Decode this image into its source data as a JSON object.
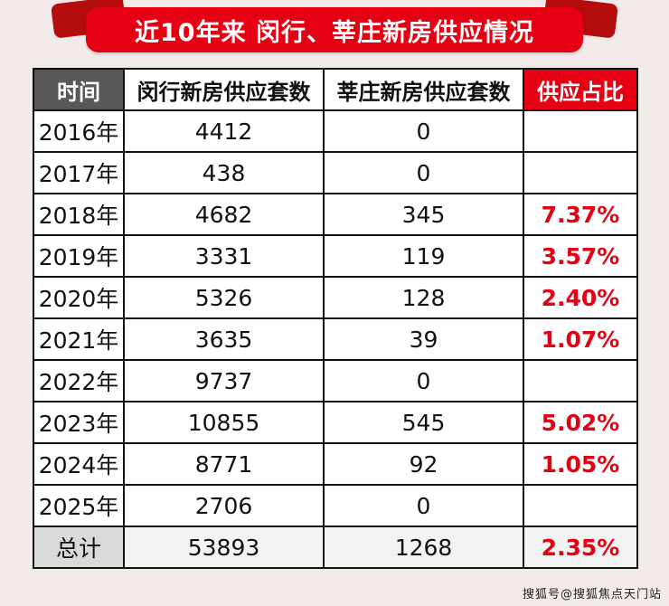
{
  "banner": {
    "title": "近10年来 闵行、莘庄新房供应情况"
  },
  "table": {
    "headers": [
      "时间",
      "闵行新房供应套数",
      "莘庄新房供应套数",
      "供应占比"
    ],
    "rows": [
      [
        "2016年",
        "4412",
        "0",
        ""
      ],
      [
        "2017年",
        "438",
        "0",
        ""
      ],
      [
        "2018年",
        "4682",
        "345",
        "7.37%"
      ],
      [
        "2019年",
        "3331",
        "119",
        "3.57%"
      ],
      [
        "2020年",
        "5326",
        "128",
        "2.40%"
      ],
      [
        "2021年",
        "3635",
        "39",
        "1.07%"
      ],
      [
        "2022年",
        "9737",
        "0",
        ""
      ],
      [
        "2023年",
        "10855",
        "545",
        "5.02%"
      ],
      [
        "2024年",
        "8771",
        "92",
        "1.05%"
      ],
      [
        "2025年",
        "2706",
        "0",
        ""
      ],
      [
        "总计",
        "53893",
        "1268",
        "2.35%"
      ]
    ]
  },
  "watermark": "搜狐号@搜狐焦点天门站",
  "colors": {
    "accent_red": "#e60013",
    "ribbon_dark_red": "#b50d0d",
    "header_gray": "#595757",
    "total_cell_gray": "#d9d9d9",
    "background_pink": "#f2e9e9"
  },
  "chart_data": {
    "type": "table",
    "title": "近10年来 闵行、莘庄新房供应情况",
    "columns": [
      "时间",
      "闵行新房供应套数",
      "莘庄新房供应套数",
      "供应占比"
    ],
    "categories": [
      "2016年",
      "2017年",
      "2018年",
      "2019年",
      "2020年",
      "2021年",
      "2022年",
      "2023年",
      "2024年",
      "2025年"
    ],
    "series": [
      {
        "name": "闵行新房供应套数",
        "values": [
          4412,
          438,
          4682,
          3331,
          5326,
          3635,
          9737,
          10855,
          8771,
          2706
        ]
      },
      {
        "name": "莘庄新房供应套数",
        "values": [
          0,
          0,
          345,
          119,
          128,
          39,
          0,
          545,
          92,
          0
        ]
      },
      {
        "name": "供应占比",
        "values": [
          null,
          null,
          "7.37%",
          "3.57%",
          "2.40%",
          "1.07%",
          null,
          "5.02%",
          "1.05%",
          null
        ]
      }
    ],
    "totals": {
      "闵行新房供应套数": 53893,
      "莘庄新房供应套数": 1268,
      "供应占比": "2.35%"
    }
  }
}
